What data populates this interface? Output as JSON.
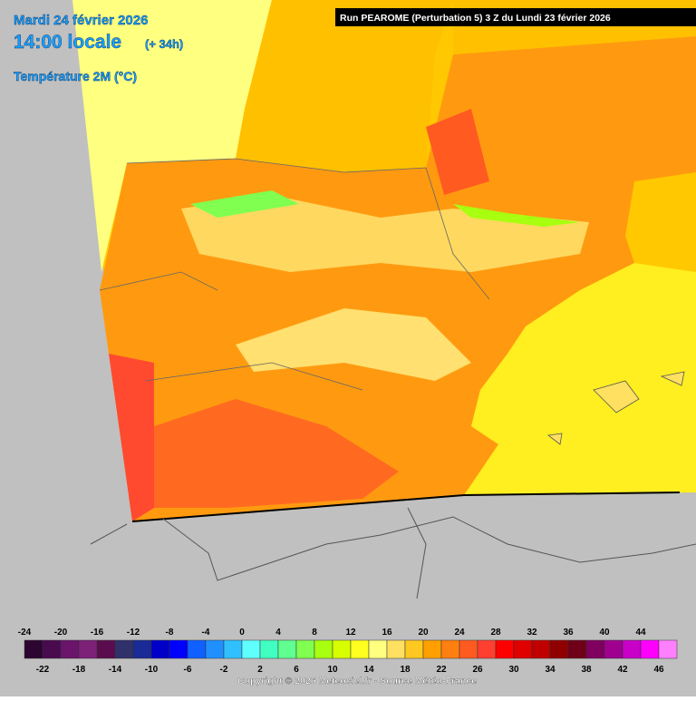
{
  "header": {
    "date": "Mardi 24 février 2026",
    "time": "14:00 locale",
    "lead": "(+ 34h)",
    "variable": "Température 2M (°C)"
  },
  "run": "Run PEAROME (Perturbation 5) 3 Z du Lundi 23 février 2026",
  "legend": {
    "values": [
      -24,
      -22,
      -20,
      -18,
      -16,
      -14,
      -12,
      -10,
      -8,
      -6,
      -4,
      -2,
      0,
      2,
      4,
      6,
      8,
      10,
      12,
      14,
      16,
      18,
      20,
      22,
      24,
      26,
      28,
      30,
      32,
      34,
      36,
      38,
      40,
      42,
      44,
      46
    ],
    "colors": [
      "#2c0530",
      "#4a0a4e",
      "#6a146c",
      "#7c2078",
      "#5a0c4e",
      "#30306a",
      "#1a2a96",
      "#0000c8",
      "#0000ff",
      "#1060ff",
      "#2090ff",
      "#30c0ff",
      "#60ffff",
      "#40ffc0",
      "#60ff90",
      "#80ff50",
      "#a8ff10",
      "#d8ff00",
      "#ffff20",
      "#ffff80",
      "#ffe060",
      "#ffc820",
      "#ffa000",
      "#ff8010",
      "#ff5a20",
      "#ff4030",
      "#ff0000",
      "#e00000",
      "#c00000",
      "#900000",
      "#700018",
      "#800060",
      "#a00090",
      "#c800c8",
      "#ff00ff",
      "#ff80ff"
    ]
  },
  "copyright": "Copyright © 2026 Meteociel.fr - Source Météo-France"
}
